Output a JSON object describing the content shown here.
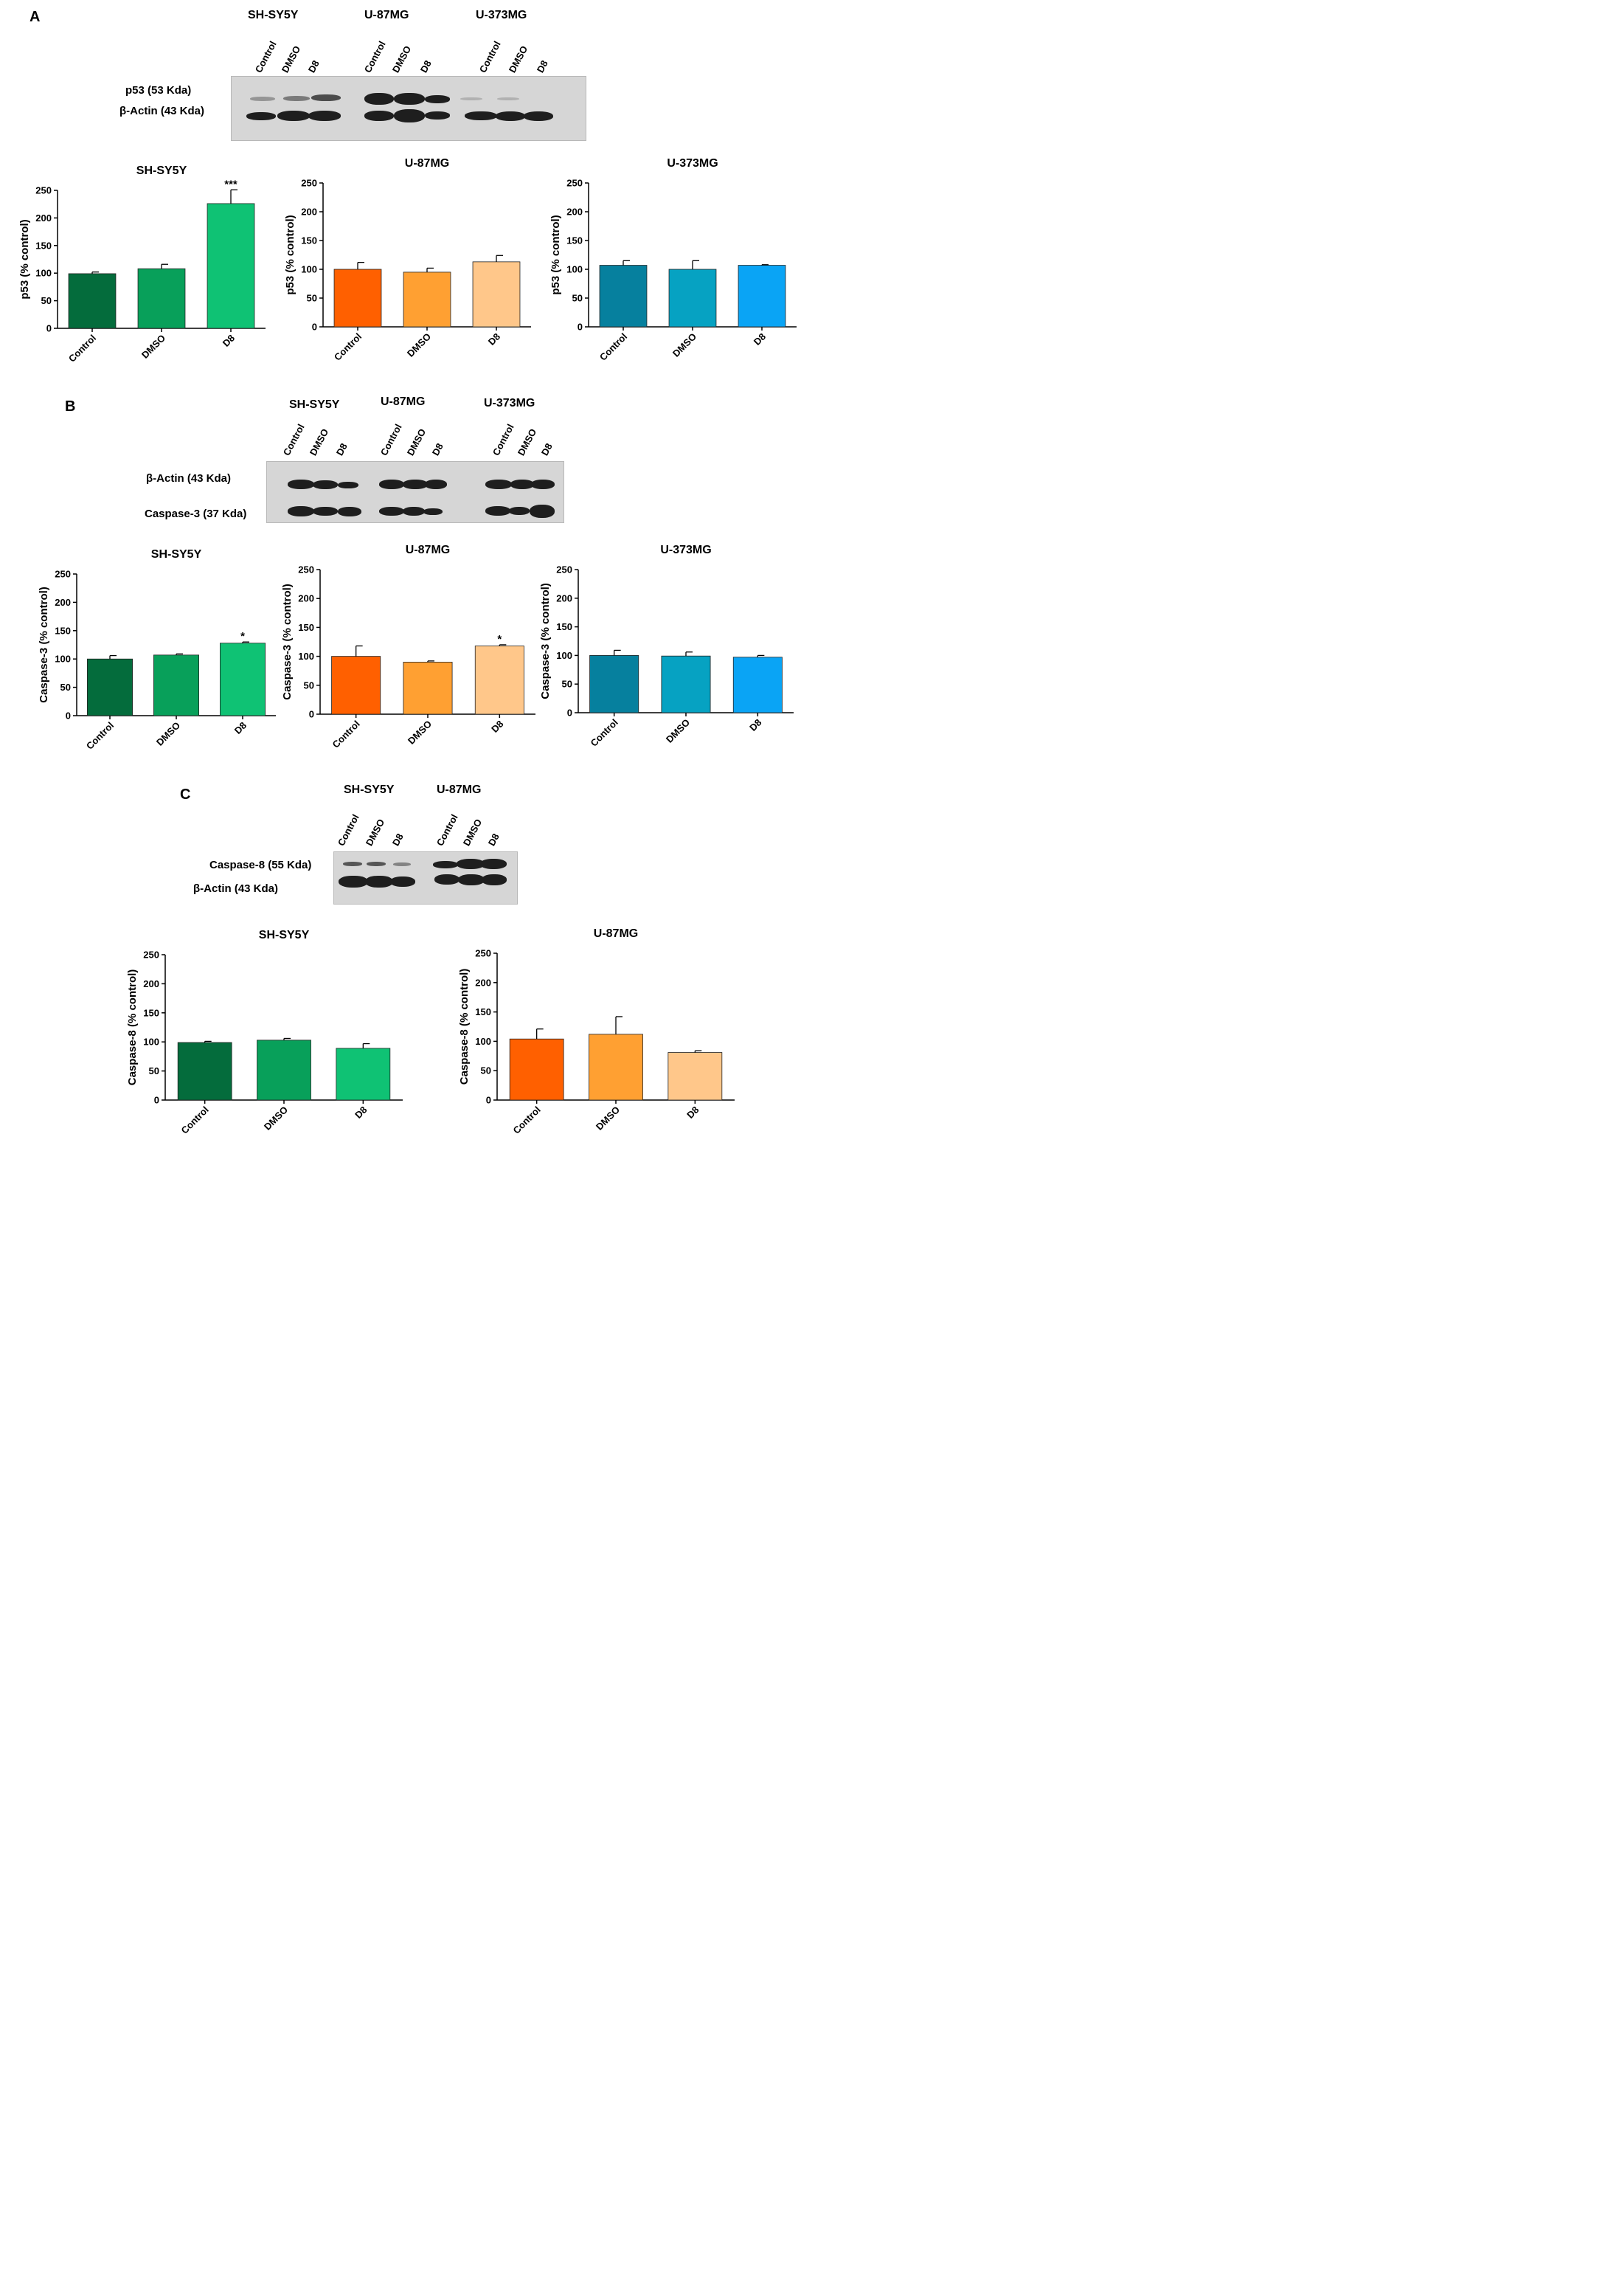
{
  "panels": [
    {
      "letter": "A",
      "cell_lines": [
        "SH-SY5Y",
        "U-87MG",
        "U-373MG"
      ],
      "lanes": [
        "Control",
        "DMSO",
        "D8"
      ],
      "blot_labels": [
        "p53 (53 Kda)",
        "β-Actin (43 Kda)"
      ]
    },
    {
      "letter": "B",
      "cell_lines": [
        "SH-SY5Y",
        "U-87MG",
        "U-373MG"
      ],
      "lanes": [
        "Control",
        "DMSO",
        "D8"
      ],
      "blot_labels": [
        "β-Actin (43 Kda)",
        "Caspase-3 (37 Kda)"
      ]
    },
    {
      "letter": "C",
      "cell_lines": [
        "SH-SY5Y",
        "U-87MG"
      ],
      "lanes": [
        "Control",
        "DMSO",
        "D8"
      ],
      "blot_labels": [
        "Caspase-8 (55 Kda)",
        "β-Actin (43 Kda)"
      ]
    }
  ],
  "chart_data": [
    {
      "type": "bar",
      "title": "SH-SY5Y",
      "ylabel": "p53 (% control)",
      "ylim": [
        0,
        250
      ],
      "yticks": [
        0,
        50,
        100,
        150,
        200,
        250
      ],
      "categories": [
        "Control",
        "DMSO",
        "D8"
      ],
      "values": [
        99,
        108,
        226
      ],
      "errors": [
        3,
        8,
        25
      ],
      "annotations": [
        "",
        "",
        "***"
      ],
      "colors": [
        "#046c3c",
        "#08a05a",
        "#0fc274"
      ]
    },
    {
      "type": "bar",
      "title": "U-87MG",
      "ylabel": "p53 (% control)",
      "ylim": [
        0,
        250
      ],
      "yticks": [
        0,
        50,
        100,
        150,
        200,
        250
      ],
      "categories": [
        "Control",
        "DMSO",
        "D8"
      ],
      "values": [
        100,
        95,
        113
      ],
      "errors": [
        12,
        7,
        11
      ],
      "annotations": [
        "",
        "",
        ""
      ],
      "colors": [
        "#ff6000",
        "#ffa032",
        "#ffc78a"
      ]
    },
    {
      "type": "bar",
      "title": "U-373MG",
      "ylabel": "p53 (% control)",
      "ylim": [
        0,
        250
      ],
      "yticks": [
        0,
        50,
        100,
        150,
        200,
        250
      ],
      "categories": [
        "Control",
        "DMSO",
        "D8"
      ],
      "values": [
        107,
        100,
        107
      ],
      "errors": [
        8,
        15,
        1
      ],
      "annotations": [
        "",
        "",
        ""
      ],
      "colors": [
        "#06809e",
        "#06a2c2",
        "#0aa4f5"
      ]
    },
    {
      "type": "bar",
      "title": "SH-SY5Y",
      "ylabel": "Caspase-3 (% control)",
      "ylim": [
        0,
        250
      ],
      "yticks": [
        0,
        50,
        100,
        150,
        200,
        250
      ],
      "categories": [
        "Control",
        "DMSO",
        "D8"
      ],
      "values": [
        100,
        107,
        128
      ],
      "errors": [
        6,
        2,
        2
      ],
      "annotations": [
        "",
        "",
        "*"
      ],
      "colors": [
        "#046c3c",
        "#08a05a",
        "#0fc274"
      ]
    },
    {
      "type": "bar",
      "title": "U-87MG",
      "ylabel": "Caspase-3 (% control)",
      "ylim": [
        0,
        250
      ],
      "yticks": [
        0,
        50,
        100,
        150,
        200,
        250
      ],
      "categories": [
        "Control",
        "DMSO",
        "D8"
      ],
      "values": [
        100,
        90,
        118
      ],
      "errors": [
        18,
        2,
        2
      ],
      "annotations": [
        "",
        "",
        "*"
      ],
      "colors": [
        "#ff6000",
        "#ffa032",
        "#ffc78a"
      ]
    },
    {
      "type": "bar",
      "title": "U-373MG",
      "ylabel": "Caspase-3 (% control)",
      "ylim": [
        0,
        250
      ],
      "yticks": [
        0,
        50,
        100,
        150,
        200,
        250
      ],
      "categories": [
        "Control",
        "DMSO",
        "D8"
      ],
      "values": [
        100,
        99,
        97
      ],
      "errors": [
        9,
        7,
        3
      ],
      "annotations": [
        "",
        "",
        ""
      ],
      "colors": [
        "#06809e",
        "#06a2c2",
        "#0aa4f5"
      ]
    },
    {
      "type": "bar",
      "title": "SH-SY5Y",
      "ylabel": "Caspase-8 (% control)",
      "ylim": [
        0,
        250
      ],
      "yticks": [
        0,
        50,
        100,
        150,
        200,
        250
      ],
      "categories": [
        "Control",
        "DMSO",
        "D8"
      ],
      "values": [
        99,
        103,
        89
      ],
      "errors": [
        2,
        3,
        8
      ],
      "annotations": [
        "",
        "",
        ""
      ],
      "colors": [
        "#046c3c",
        "#08a05a",
        "#0fc274"
      ]
    },
    {
      "type": "bar",
      "title": "U-87MG",
      "ylabel": "Caspase-8 (% control)",
      "ylim": [
        0,
        250
      ],
      "yticks": [
        0,
        50,
        100,
        150,
        200,
        250
      ],
      "categories": [
        "Control",
        "DMSO",
        "D8"
      ],
      "values": [
        104,
        112,
        81
      ],
      "errors": [
        17,
        30,
        3
      ],
      "annotations": [
        "",
        "",
        ""
      ],
      "colors": [
        "#ff6000",
        "#ffa032",
        "#ffc78a"
      ]
    }
  ]
}
